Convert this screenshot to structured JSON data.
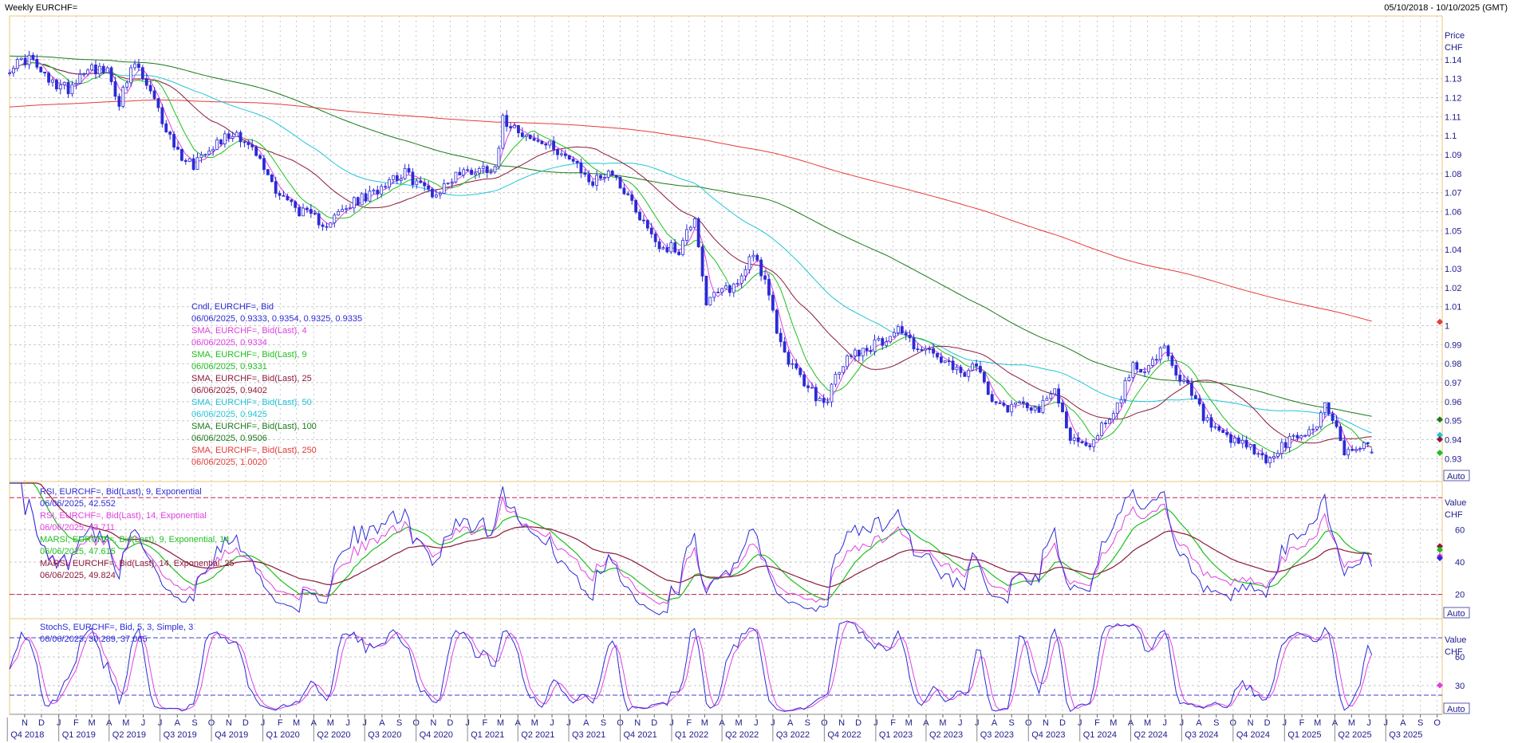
{
  "header": {
    "title": "Weekly EURCHF=",
    "range": "05/10/2018 - 10/10/2025 (GMT)"
  },
  "colors": {
    "candle": "#2b2bd6",
    "sma4": "#e040e0",
    "sma9": "#1fbf1f",
    "sma25": "#8b1a3a",
    "sma50": "#22c4d8",
    "sma100": "#1a7a1a",
    "sma250": "#e83a3a",
    "rsi9": "#2b2bd6",
    "rsi14": "#e040e0",
    "marsi9": "#1fbf1f",
    "marsi14": "#8b1a3a",
    "stoch_k": "#2b2bd6",
    "stoch_d": "#e040e0",
    "grid": "#c8c8c8",
    "ref_line": "#c02050"
  },
  "time_axis": {
    "months": [
      "N",
      "D",
      "J",
      "F",
      "M",
      "A",
      "M",
      "J",
      "J",
      "A",
      "S",
      "O",
      "N",
      "D",
      "J",
      "F",
      "M",
      "A",
      "M",
      "J",
      "J",
      "A",
      "S",
      "O",
      "N",
      "D",
      "J",
      "F",
      "M",
      "A",
      "M",
      "J",
      "J",
      "A",
      "S",
      "O",
      "N",
      "D",
      "J",
      "F",
      "M",
      "A",
      "M",
      "J",
      "J",
      "A",
      "S",
      "O",
      "N",
      "D",
      "J",
      "F",
      "M",
      "A",
      "M",
      "J",
      "J",
      "A",
      "S",
      "O",
      "N",
      "D",
      "J",
      "F",
      "M",
      "A",
      "M",
      "J",
      "J",
      "A",
      "S",
      "O",
      "N",
      "D",
      "J",
      "F",
      "M",
      "A",
      "M",
      "J",
      "J",
      "A",
      "S",
      "O"
    ],
    "quarters": [
      "Q4 2018",
      "Q1 2019",
      "Q2 2019",
      "Q3 2019",
      "Q4 2019",
      "Q1 2020",
      "Q2 2020",
      "Q3 2020",
      "Q4 2020",
      "Q1 2021",
      "Q2 2021",
      "Q3 2021",
      "Q4 2021",
      "Q1 2022",
      "Q2 2022",
      "Q3 2022",
      "Q4 2022",
      "Q1 2023",
      "Q2 2023",
      "Q3 2023",
      "Q4 2023",
      "Q1 2024",
      "Q2 2024",
      "Q3 2024",
      "Q4 2024",
      "Q1 2025",
      "Q2 2025",
      "Q3 2025"
    ]
  },
  "panels": {
    "price": {
      "axis_title": "Price",
      "unit": "CHF",
      "auto_label": "Auto",
      "legend": [
        {
          "label": "Cndl, EURCHF=, Bid",
          "value": "06/06/2025, 0.9333, 0.9354, 0.9325, 0.9335",
          "color_key": "candle"
        },
        {
          "label": "SMA, EURCHF=, Bid(Last),  4",
          "value": "06/06/2025, 0.9334",
          "color_key": "sma4"
        },
        {
          "label": "SMA, EURCHF=, Bid(Last),  9",
          "value": "06/06/2025, 0.9331",
          "color_key": "sma9"
        },
        {
          "label": "SMA, EURCHF=, Bid(Last),  25",
          "value": "06/06/2025, 0.9402",
          "color_key": "sma25"
        },
        {
          "label": "SMA, EURCHF=, Bid(Last),  50",
          "value": "06/06/2025, 0.9425",
          "color_key": "sma50"
        },
        {
          "label": "SMA, EURCHF=, Bid(Last),  100",
          "value": "06/06/2025, 0.9506",
          "color_key": "sma100"
        },
        {
          "label": "SMA, EURCHF=, Bid(Last),  250",
          "value": "06/06/2025, 1.0020",
          "color_key": "sma250"
        }
      ]
    },
    "rsi": {
      "axis_title": "Value",
      "unit": "CHF",
      "auto_label": "Auto",
      "legend": [
        {
          "label": "RSI, EURCHF=, Bid(Last),  9, Exponential",
          "value": "06/06/2025, 42.552",
          "color_key": "rsi9"
        },
        {
          "label": "RSI, EURCHF=, Bid(Last),  14, Exponential",
          "value": "06/06/2025, 43.711",
          "color_key": "rsi14"
        },
        {
          "label": "MARSI, EURCHF=, Bid(Last),  9, Exponential, 14",
          "value": "06/06/2025, 47.615",
          "color_key": "marsi9"
        },
        {
          "label": "MARSI, EURCHF=, Bid(Last),  14, Exponential, 25",
          "value": "06/06/2025, 49.824",
          "color_key": "marsi14"
        }
      ]
    },
    "stoch": {
      "axis_title": "Value",
      "unit": "CHF",
      "auto_label": "Auto",
      "legend": [
        {
          "label": "StochS, EURCHF=, Bid,  5, 3, Simple, 3",
          "value": "06/06/2025, 30.289, 37.065",
          "color_key": "stoch_k"
        }
      ]
    }
  },
  "chart_data": [
    {
      "type": "line",
      "panel": "price",
      "title": "Weekly EURCHF=",
      "ylabel": "Price",
      "y_ticks": [
        0.93,
        0.94,
        0.95,
        0.96,
        0.97,
        0.98,
        0.99,
        1,
        1.01,
        1.02,
        1.03,
        1.04,
        1.05,
        1.06,
        1.07,
        1.08,
        1.09,
        1.1,
        1.11,
        1.12,
        1.13,
        1.14
      ],
      "ylim": [
        0.918,
        1.163
      ],
      "x_range": [
        "2018-10-05",
        "2025-10-10"
      ],
      "grid": true,
      "anchors_close": [
        [
          "2018-10-05",
          1.136
        ],
        [
          "2018-11-09",
          1.141
        ],
        [
          "2018-12-14",
          1.128
        ],
        [
          "2019-01-18",
          1.125
        ],
        [
          "2019-02-22",
          1.137
        ],
        [
          "2019-03-29",
          1.133
        ],
        [
          "2019-04-19",
          1.118
        ],
        [
          "2019-05-17",
          1.138
        ],
        [
          "2019-06-14",
          1.122
        ],
        [
          "2019-07-05",
          1.108
        ],
        [
          "2019-08-02",
          1.091
        ],
        [
          "2019-08-30",
          1.085
        ],
        [
          "2019-09-20",
          1.093
        ],
        [
          "2019-10-18",
          1.098
        ],
        [
          "2019-11-15",
          1.102
        ],
        [
          "2019-12-20",
          1.09
        ],
        [
          "2020-01-24",
          1.072
        ],
        [
          "2020-02-28",
          1.062
        ],
        [
          "2020-03-27",
          1.057
        ],
        [
          "2020-04-24",
          1.054
        ],
        [
          "2020-05-22",
          1.06
        ],
        [
          "2020-06-19",
          1.066
        ],
        [
          "2020-07-10",
          1.068
        ],
        [
          "2020-08-14",
          1.078
        ],
        [
          "2020-09-11",
          1.08
        ],
        [
          "2020-10-09",
          1.074
        ],
        [
          "2020-11-06",
          1.069
        ],
        [
          "2020-12-11",
          1.08
        ],
        [
          "2021-01-15",
          1.082
        ],
        [
          "2021-02-19",
          1.084
        ],
        [
          "2021-03-05",
          1.108
        ],
        [
          "2021-03-26",
          1.106
        ],
        [
          "2021-04-23",
          1.098
        ],
        [
          "2021-05-21",
          1.095
        ],
        [
          "2021-06-18",
          1.092
        ],
        [
          "2021-07-16",
          1.083
        ],
        [
          "2021-08-13",
          1.075
        ],
        [
          "2021-09-10",
          1.082
        ],
        [
          "2021-10-08",
          1.072
        ],
        [
          "2021-11-05",
          1.058
        ],
        [
          "2021-12-10",
          1.042
        ],
        [
          "2022-01-14",
          1.04
        ],
        [
          "2022-02-11",
          1.058
        ],
        [
          "2022-03-04",
          1.012
        ],
        [
          "2022-04-01",
          1.018
        ],
        [
          "2022-04-29",
          1.022
        ],
        [
          "2022-05-27",
          1.04
        ],
        [
          "2022-06-17",
          1.022
        ],
        [
          "2022-07-15",
          0.99
        ],
        [
          "2022-08-12",
          0.975
        ],
        [
          "2022-09-09",
          0.965
        ],
        [
          "2022-09-30",
          0.958
        ],
        [
          "2022-10-21",
          0.972
        ],
        [
          "2022-11-18",
          0.986
        ],
        [
          "2022-12-16",
          0.988
        ],
        [
          "2023-01-13",
          0.992
        ],
        [
          "2023-02-10",
          0.999
        ],
        [
          "2023-03-10",
          0.99
        ],
        [
          "2023-04-07",
          0.986
        ],
        [
          "2023-05-05",
          0.98
        ],
        [
          "2023-06-02",
          0.974
        ],
        [
          "2023-06-30",
          0.978
        ],
        [
          "2023-07-28",
          0.963
        ],
        [
          "2023-08-25",
          0.957
        ],
        [
          "2023-09-22",
          0.961
        ],
        [
          "2023-10-20",
          0.955
        ],
        [
          "2023-11-17",
          0.966
        ],
        [
          "2023-12-15",
          0.942
        ],
        [
          "2024-01-12",
          0.935
        ],
        [
          "2024-02-09",
          0.947
        ],
        [
          "2024-03-08",
          0.958
        ],
        [
          "2024-04-05",
          0.979
        ],
        [
          "2024-05-03",
          0.978
        ],
        [
          "2024-05-31",
          0.988
        ],
        [
          "2024-06-21",
          0.972
        ],
        [
          "2024-07-12",
          0.968
        ],
        [
          "2024-08-09",
          0.952
        ],
        [
          "2024-09-06",
          0.942
        ],
        [
          "2024-10-04",
          0.938
        ],
        [
          "2024-11-01",
          0.936
        ],
        [
          "2024-11-29",
          0.928
        ],
        [
          "2024-12-20",
          0.934
        ],
        [
          "2025-01-24",
          0.942
        ],
        [
          "2025-02-21",
          0.945
        ],
        [
          "2025-03-14",
          0.958
        ],
        [
          "2025-04-04",
          0.948
        ],
        [
          "2025-04-18",
          0.932
        ],
        [
          "2025-05-16",
          0.938
        ],
        [
          "2025-06-06",
          0.9335
        ]
      ],
      "last_candle": {
        "date": "06/06/2025",
        "open": 0.9333,
        "high": 0.9354,
        "low": 0.9325,
        "close": 0.9335
      },
      "sma_last": {
        "4": 0.9334,
        "9": 0.9331,
        "25": 0.9402,
        "50": 0.9425,
        "100": 0.9506,
        "250": 1.002
      }
    },
    {
      "type": "line",
      "panel": "rsi",
      "y_ticks": [
        20,
        40,
        60
      ],
      "ylim": [
        5,
        90
      ],
      "ref_lines": [
        20,
        80
      ],
      "last_values": {
        "RSI 9": 42.552,
        "RSI 14": 43.711,
        "MARSI 9": 47.615,
        "MARSI 14": 49.824
      }
    },
    {
      "type": "line",
      "panel": "stoch",
      "y_ticks": [
        30,
        60
      ],
      "ylim": [
        0,
        100
      ],
      "ref_lines": [
        20,
        80
      ],
      "last_values": {
        "%K": 30.289,
        "%D": 37.065
      }
    }
  ]
}
